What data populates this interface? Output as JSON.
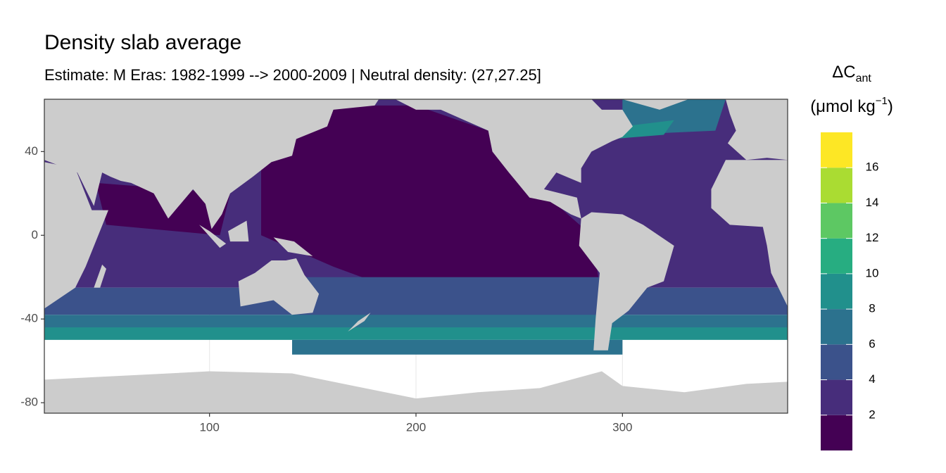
{
  "chart_data": {
    "type": "map",
    "title": "Density slab average",
    "subtitle": "Estimate: M Eras: 1982-1999 --> 2000-2009 | Neutral density: (27,27.25]",
    "xlim": [
      20,
      380
    ],
    "ylim": [
      -85,
      65
    ],
    "xticks": [
      100,
      200,
      300
    ],
    "yticks": [
      -80,
      -40,
      0,
      40
    ],
    "grid": true,
    "legend": {
      "title_main": "ΔC",
      "title_sub": "ant",
      "unit_open": "(μmol kg",
      "unit_sup": "−1",
      "unit_close": ")",
      "lim": [
        0,
        18
      ],
      "breaks": [
        0,
        2,
        4,
        6,
        8,
        10,
        12,
        14,
        16,
        18
      ],
      "colors": [
        "#440154",
        "#472d7b",
        "#3b528b",
        "#2c728e",
        "#21908c",
        "#27ad81",
        "#5dc863",
        "#aadc32",
        "#fde725"
      ],
      "ticks": [
        2,
        4,
        6,
        8,
        10,
        12,
        14,
        16
      ]
    }
  }
}
